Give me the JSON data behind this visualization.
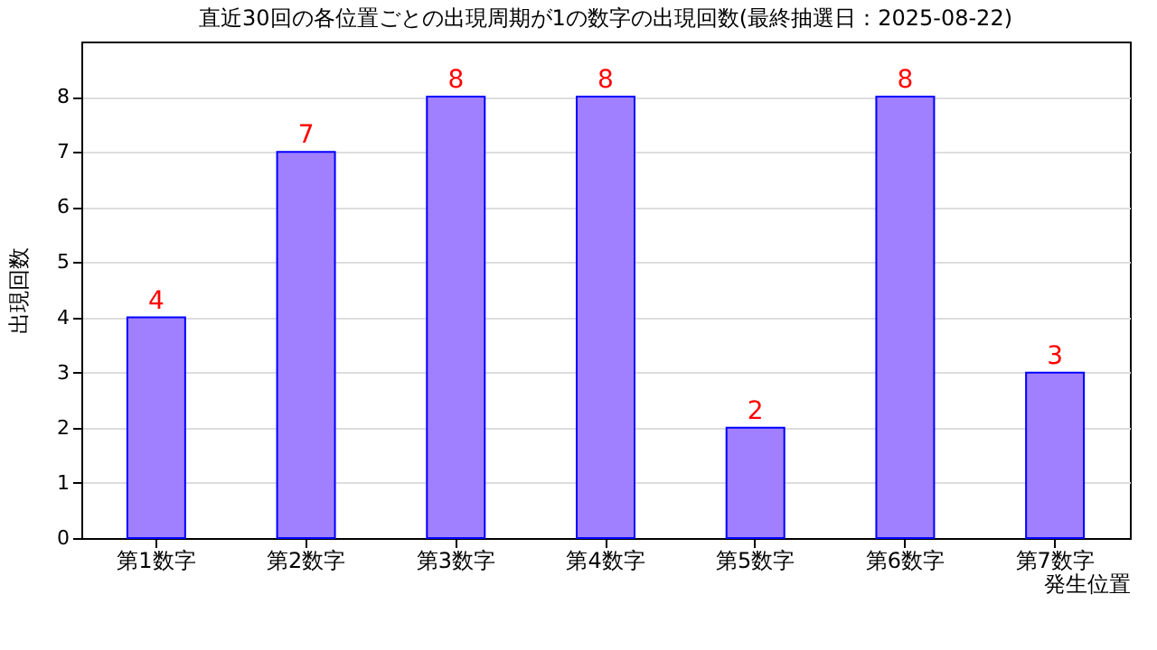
{
  "chart_data": {
    "type": "bar",
    "title": "直近30回の各位置ごとの出現周期が1の数字の出現回数(最終抽選日：2025-08-22)",
    "xlabel": "発生位置",
    "ylabel": "出現回数",
    "categories": [
      "第1数字",
      "第2数字",
      "第3数字",
      "第4数字",
      "第5数字",
      "第6数字",
      "第7数字"
    ],
    "values": [
      4,
      7,
      8,
      8,
      2,
      8,
      3
    ],
    "color": "#a080ff",
    "ylim": [
      0,
      9
    ],
    "yticks": [
      0,
      1,
      2,
      3,
      4,
      5,
      6,
      7,
      8
    ],
    "grid": "y",
    "data_labels": true
  }
}
